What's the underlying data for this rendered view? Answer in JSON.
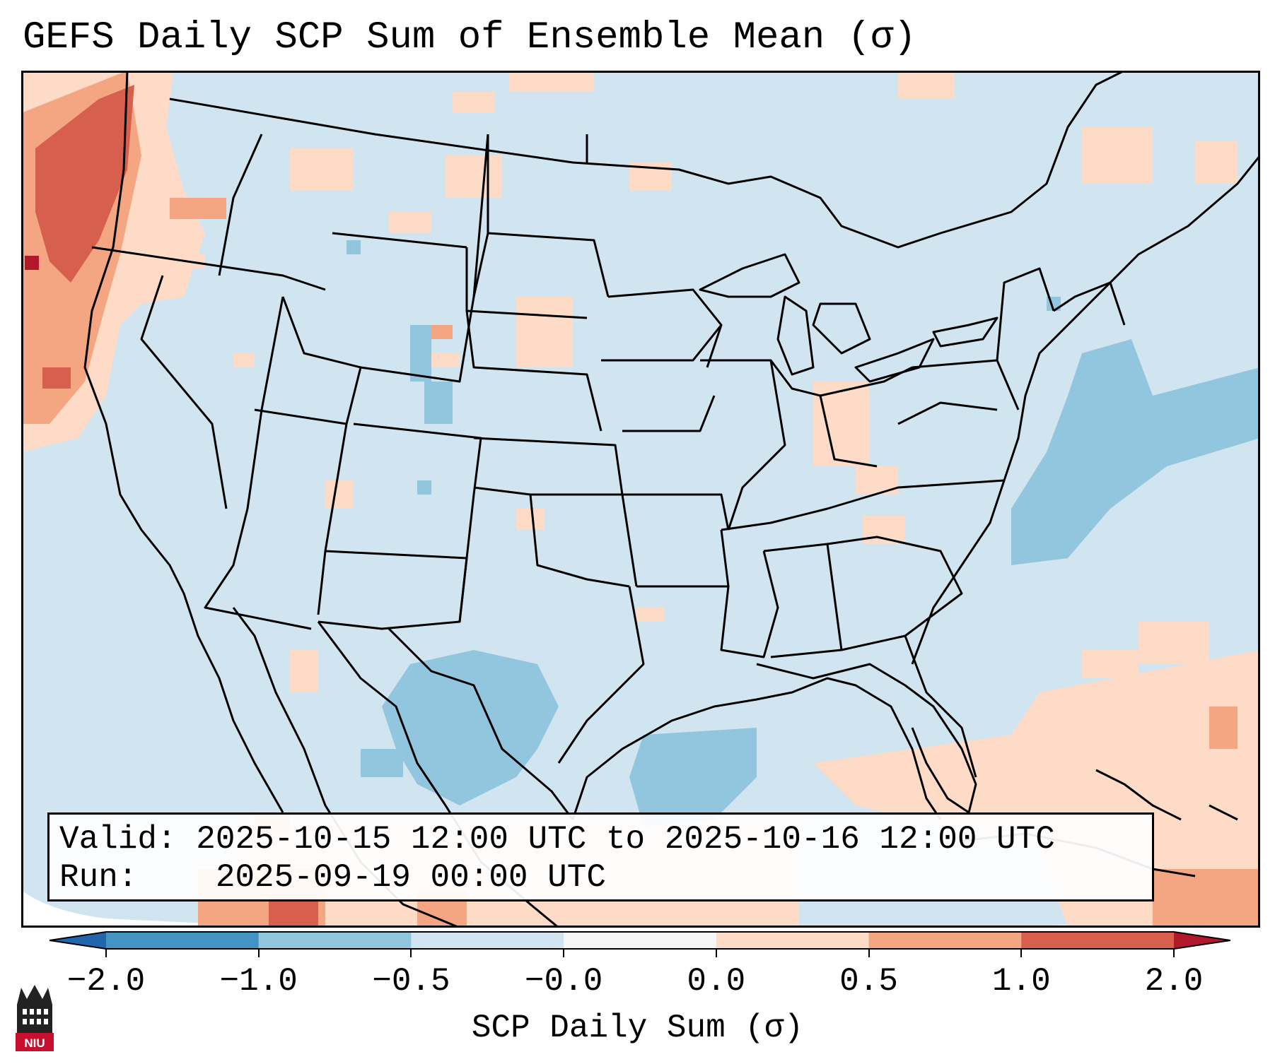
{
  "title": "GEFS Daily SCP Sum of Ensemble Mean (σ)",
  "info": {
    "valid_label": "Valid:",
    "valid_value": "2025-10-15 12:00 UTC to 2025-10-16 12:00 UTC",
    "run_label": "Run:",
    "run_value": "2025-09-19 00:00 UTC"
  },
  "colorbar": {
    "label": "SCP Daily Sum (σ)",
    "ticks": [
      "−2.0",
      "−1.0",
      "−0.5",
      "−0.0",
      "0.0",
      "0.5",
      "1.0",
      "2.0"
    ],
    "colors": [
      "#4393c3",
      "#92c5de",
      "#d1e5f0",
      "#f7f7f7",
      "#fddbc7",
      "#f4a582",
      "#d6604d"
    ],
    "extend_low_color": "#2166ac",
    "extend_high_color": "#b2182b"
  },
  "map": {
    "background_color": "#d1e5f0",
    "region": "Continental United States"
  },
  "logo": {
    "text": "NIU",
    "icon": "niu-logo-icon"
  }
}
